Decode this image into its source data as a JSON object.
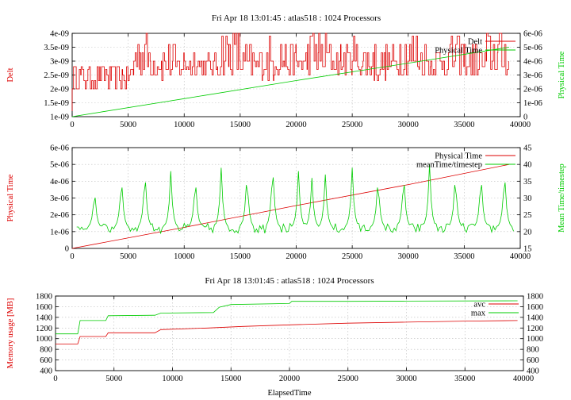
{
  "chart_data": [
    {
      "type": "line",
      "title": "Fri Apr 18 13:01:45 : atlas518 : 1024 Processors",
      "xlabel": "",
      "ylabel_left": "Delt",
      "ylabel_right": "Physical Time",
      "xlim": [
        0,
        40000
      ],
      "ylim_left": [
        1e-09,
        4e-09
      ],
      "ylim_right": [
        0,
        6e-06
      ],
      "xticks": [
        "0",
        "5000",
        "10000",
        "15000",
        "20000",
        "25000",
        "30000",
        "35000",
        "40000"
      ],
      "yticks_left": [
        "1e-09",
        "1.5e-09",
        "2e-09",
        "2.5e-09",
        "3e-09",
        "3.5e-09",
        "4e-09"
      ],
      "yticks_right": [
        "0",
        "1e-06",
        "2e-06",
        "3e-06",
        "4e-06",
        "5e-06",
        "6e-06"
      ],
      "grid": true,
      "legend": "top-right",
      "series": [
        {
          "name": "Delt",
          "axis": "left",
          "color": "#dd0000",
          "x": [
            0,
            400,
            800,
            1500,
            2500,
            3500,
            4500,
            5500,
            6000,
            7000,
            8000,
            9000,
            10000,
            11000,
            12000,
            13000,
            14000,
            15000,
            16000,
            17000,
            18000,
            19000,
            20000,
            21000,
            22000,
            23000,
            24000,
            25000,
            26000,
            27000,
            28000,
            29000,
            30000,
            31000,
            32000,
            33000,
            34000,
            35000,
            36000,
            37000,
            38000,
            39000
          ],
          "values": [
            1.2e-09,
            2.7e-09,
            2.3e-09,
            2.7e-09,
            2.3e-09,
            2.7e-09,
            2e-09,
            2.7e-09,
            4e-09,
            2.9e-09,
            3.6e-09,
            2.6e-09,
            3.8e-09,
            2.8e-09,
            3.5e-09,
            2.7e-09,
            4e-09,
            2.8e-09,
            3.7e-09,
            2.6e-09,
            3.9e-09,
            2.8e-09,
            3.6e-09,
            2.7e-09,
            4e-09,
            2.9e-09,
            3.7e-09,
            2.8e-09,
            3.9e-09,
            2.6e-09,
            3.8e-09,
            2.9e-09,
            4e-09,
            2.7e-09,
            3.6e-09,
            2.9e-09,
            3.9e-09,
            2.8e-09,
            3.7e-09,
            2.7e-09,
            4e-09,
            2.9e-09
          ]
        },
        {
          "name": "Physical Time",
          "axis": "right",
          "color": "#00cc00",
          "x": [
            0,
            10000,
            20000,
            30000,
            39000
          ],
          "values": [
            0,
            1.3e-06,
            2.6e-06,
            3.85e-06,
            5e-06
          ]
        }
      ]
    },
    {
      "type": "line",
      "title": "",
      "xlabel": "",
      "ylabel_left": "Physical Time",
      "ylabel_right": "Mean Time/timestep",
      "xlim": [
        0,
        40000
      ],
      "ylim_left": [
        0,
        6e-06
      ],
      "ylim_right": [
        15,
        45
      ],
      "xticks": [
        "0",
        "5000",
        "10000",
        "15000",
        "20000",
        "25000",
        "30000",
        "35000",
        "40000"
      ],
      "yticks_left": [
        "0",
        "1e-06",
        "2e-06",
        "3e-06",
        "4e-06",
        "5e-06",
        "6e-06"
      ],
      "yticks_right": [
        "15",
        "20",
        "25",
        "30",
        "35",
        "40",
        "45"
      ],
      "grid": true,
      "legend": "top-right",
      "series": [
        {
          "name": "Physical Time",
          "axis": "left",
          "color": "#dd0000",
          "x": [
            0,
            10000,
            20000,
            30000,
            39000
          ],
          "values": [
            0,
            1.25e-06,
            2.55e-06,
            3.8e-06,
            5e-06
          ]
        },
        {
          "name": "meanTime/timestep",
          "axis": "right",
          "color": "#00cc00",
          "baseline": 21,
          "peaks": [
            {
              "x": 2000,
              "y": 33
            },
            {
              "x": 4400,
              "y": 37
            },
            {
              "x": 6500,
              "y": 39
            },
            {
              "x": 8800,
              "y": 38
            },
            {
              "x": 11000,
              "y": 37
            },
            {
              "x": 13300,
              "y": 39
            },
            {
              "x": 15600,
              "y": 38
            },
            {
              "x": 17900,
              "y": 41
            },
            {
              "x": 20200,
              "y": 38
            },
            {
              "x": 21400,
              "y": 36
            },
            {
              "x": 22600,
              "y": 37
            },
            {
              "x": 25000,
              "y": 39
            },
            {
              "x": 27300,
              "y": 37
            },
            {
              "x": 29600,
              "y": 38
            },
            {
              "x": 31900,
              "y": 40
            },
            {
              "x": 34200,
              "y": 38
            },
            {
              "x": 36500,
              "y": 38
            },
            {
              "x": 38600,
              "y": 39
            }
          ]
        }
      ]
    },
    {
      "type": "line",
      "title": "Fri Apr 18 13:01:45 : atlas518 : 1024 Processors",
      "xlabel": "ElapsedTime",
      "ylabel_left": "Memory usage [MB]",
      "ylabel_right": "",
      "xlim": [
        0,
        40000
      ],
      "ylim_left": [
        400,
        1800
      ],
      "ylim_right": [
        400,
        1800
      ],
      "xticks": [
        "0",
        "5000",
        "10000",
        "15000",
        "20000",
        "25000",
        "30000",
        "35000",
        "40000"
      ],
      "yticks_left": [
        "400",
        "600",
        "800",
        "1000",
        "1200",
        "1400",
        "1600",
        "1800"
      ],
      "yticks_right": [
        "400",
        "600",
        "800",
        "1000",
        "1200",
        "1400",
        "1600",
        "1800"
      ],
      "grid": true,
      "legend": "top-right",
      "series": [
        {
          "name": "avc",
          "color": "#dd0000",
          "x": [
            0,
            1900,
            2100,
            4300,
            4500,
            8500,
            9000,
            13000,
            16000,
            20000,
            25000,
            30000,
            35000,
            39500
          ],
          "values": [
            900,
            900,
            1040,
            1040,
            1110,
            1110,
            1170,
            1200,
            1230,
            1260,
            1290,
            1310,
            1330,
            1340
          ]
        },
        {
          "name": "max",
          "color": "#00cc00",
          "x": [
            0,
            1900,
            2100,
            4300,
            4500,
            8500,
            9000,
            13500,
            14000,
            15000,
            20000,
            20200,
            25000,
            30000,
            39500
          ],
          "values": [
            1090,
            1090,
            1340,
            1340,
            1430,
            1440,
            1480,
            1490,
            1590,
            1640,
            1660,
            1700,
            1700,
            1705,
            1710
          ]
        }
      ]
    }
  ]
}
